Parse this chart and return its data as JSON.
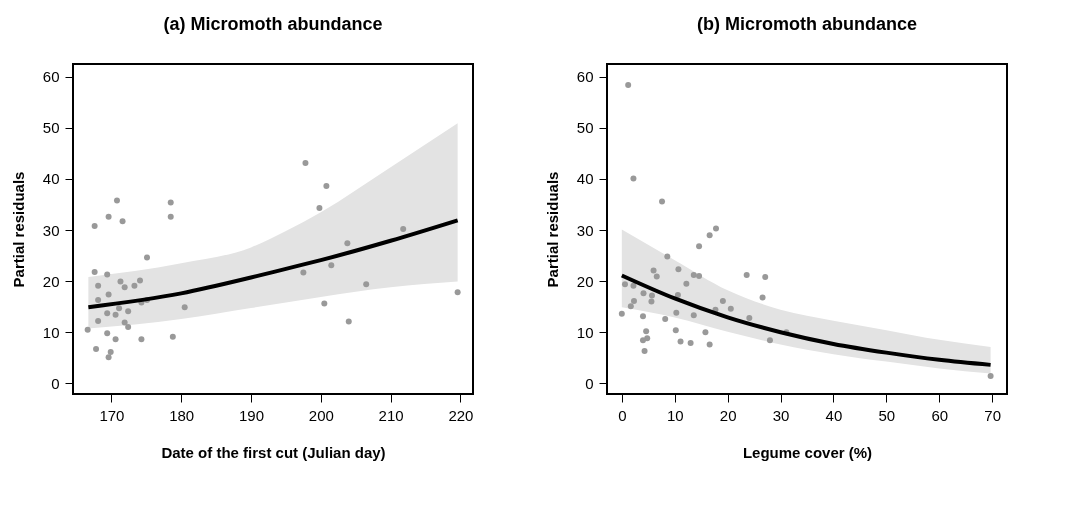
{
  "chart_data": [
    {
      "type": "scatter",
      "title": "(a) Micromoth abundance",
      "xlabel": "Date of the first cut (Julian day)",
      "ylabel": "Partial residuals",
      "xlim": [
        164.5,
        221.8
      ],
      "xticks": [
        170,
        180,
        190,
        200,
        210,
        220
      ],
      "ylim": [
        -2.1,
        62.5
      ],
      "yticks": [
        0,
        10,
        20,
        30,
        40,
        50,
        60
      ],
      "grid": false,
      "series": [
        {
          "type": "scatter",
          "color": "#999999",
          "marker": "circle",
          "x": [
            167.6,
            169.6,
            170.8,
            171.6,
            178.5,
            178.5,
            175.1,
            167.6,
            169.4,
            168.1,
            171.3,
            171.9,
            173.3,
            174.1,
            168.1,
            169.6,
            171.1,
            174.3,
            175.1,
            169.4,
            170.6,
            172.4,
            168.1,
            171.9,
            172.4,
            166.6,
            169.4,
            170.6,
            174.3,
            178.8,
            167.8,
            169.9,
            169.6,
            180.5,
            197.8,
            200.8,
            199.8,
            203.8,
            197.5,
            201.5,
            206.5,
            200.5,
            204.0,
            211.8,
            219.6
          ],
          "values": [
            30.8,
            32.6,
            35.8,
            31.7,
            35.4,
            32.6,
            24.6,
            21.8,
            21.3,
            19.1,
            19.9,
            18.8,
            19.1,
            20.1,
            16.3,
            17.4,
            14.7,
            15.8,
            16.3,
            13.7,
            13.4,
            14.1,
            12.2,
            11.9,
            11.0,
            10.5,
            9.8,
            8.6,
            8.6,
            9.1,
            6.7,
            6.1,
            5.1,
            14.9,
            43.1,
            38.6,
            34.3,
            27.4,
            21.7,
            23.1,
            19.4,
            15.6,
            12.1,
            30.2,
            17.8
          ]
        },
        {
          "type": "line",
          "color": "#000000",
          "line_style": "solid",
          "x": [
            166.7,
            180,
            190,
            195,
            200,
            210,
            219.6
          ],
          "values": [
            14.9,
            17.6,
            20.7,
            22.4,
            24.1,
            27.9,
            31.9
          ],
          "lower": [
            10.7,
            12.6,
            14.75,
            15.8,
            16.9,
            18.8,
            19.9
          ],
          "upper": [
            20.8,
            23.5,
            26.6,
            29.8,
            33.5,
            42.3,
            50.9
          ]
        }
      ]
    },
    {
      "type": "scatter",
      "title": "(b) Micromoth abundance",
      "xlabel": "Legume cover (%)",
      "ylabel": "Partial residuals",
      "xlim": [
        -2.8,
        72.8
      ],
      "xticks": [
        0,
        10,
        20,
        30,
        40,
        50,
        60,
        70
      ],
      "ylim": [
        -2.1,
        62.5
      ],
      "yticks": [
        0,
        10,
        20,
        30,
        40,
        50,
        60
      ],
      "grid": false,
      "series": [
        {
          "type": "scatter",
          "color": "#999999",
          "marker": "circle",
          "x": [
            1.2,
            2.2,
            7.6,
            17.8,
            16.6,
            14.6,
            8.6,
            6.0,
            6.6,
            10.7,
            13.6,
            14.6,
            23.6,
            27.1,
            0.6,
            2.2,
            12.2,
            4.1,
            5.7,
            5.6,
            2.3,
            10.6,
            26.6,
            19.1,
            1.7,
            20.6,
            17.7,
            10.3,
            0.0,
            13.6,
            4.0,
            8.2,
            24.1,
            4.6,
            10.2,
            15.8,
            31.1,
            4.8,
            4.0,
            11.1,
            13.0,
            16.6,
            28.0,
            4.3,
            69.7
          ],
          "values": [
            58.4,
            40.1,
            35.6,
            30.3,
            29.0,
            26.8,
            24.8,
            22.1,
            20.9,
            22.3,
            21.2,
            21.0,
            21.2,
            20.8,
            19.4,
            19.1,
            19.5,
            17.6,
            17.2,
            16.0,
            16.1,
            17.3,
            16.8,
            16.1,
            15.1,
            14.6,
            14.4,
            13.8,
            13.6,
            13.3,
            13.1,
            12.6,
            12.8,
            10.2,
            10.4,
            10.0,
            10.0,
            8.8,
            8.4,
            8.2,
            7.9,
            7.6,
            8.4,
            6.3,
            1.4
          ]
        },
        {
          "type": "line",
          "color": "#000000",
          "line_style": "solid",
          "x": [
            0,
            10,
            20,
            30,
            40,
            50,
            60,
            69.7
          ],
          "values": [
            21.1,
            16.6,
            12.9,
            10.0,
            7.7,
            6.0,
            4.6,
            3.6
          ],
          "lower": [
            14.9,
            12.9,
            10.1,
            7.6,
            5.7,
            4.25,
            2.9,
            1.9
          ],
          "upper": [
            30.1,
            24.1,
            18.2,
            14.4,
            12.25,
            10.4,
            8.5,
            7.1
          ]
        }
      ]
    }
  ]
}
